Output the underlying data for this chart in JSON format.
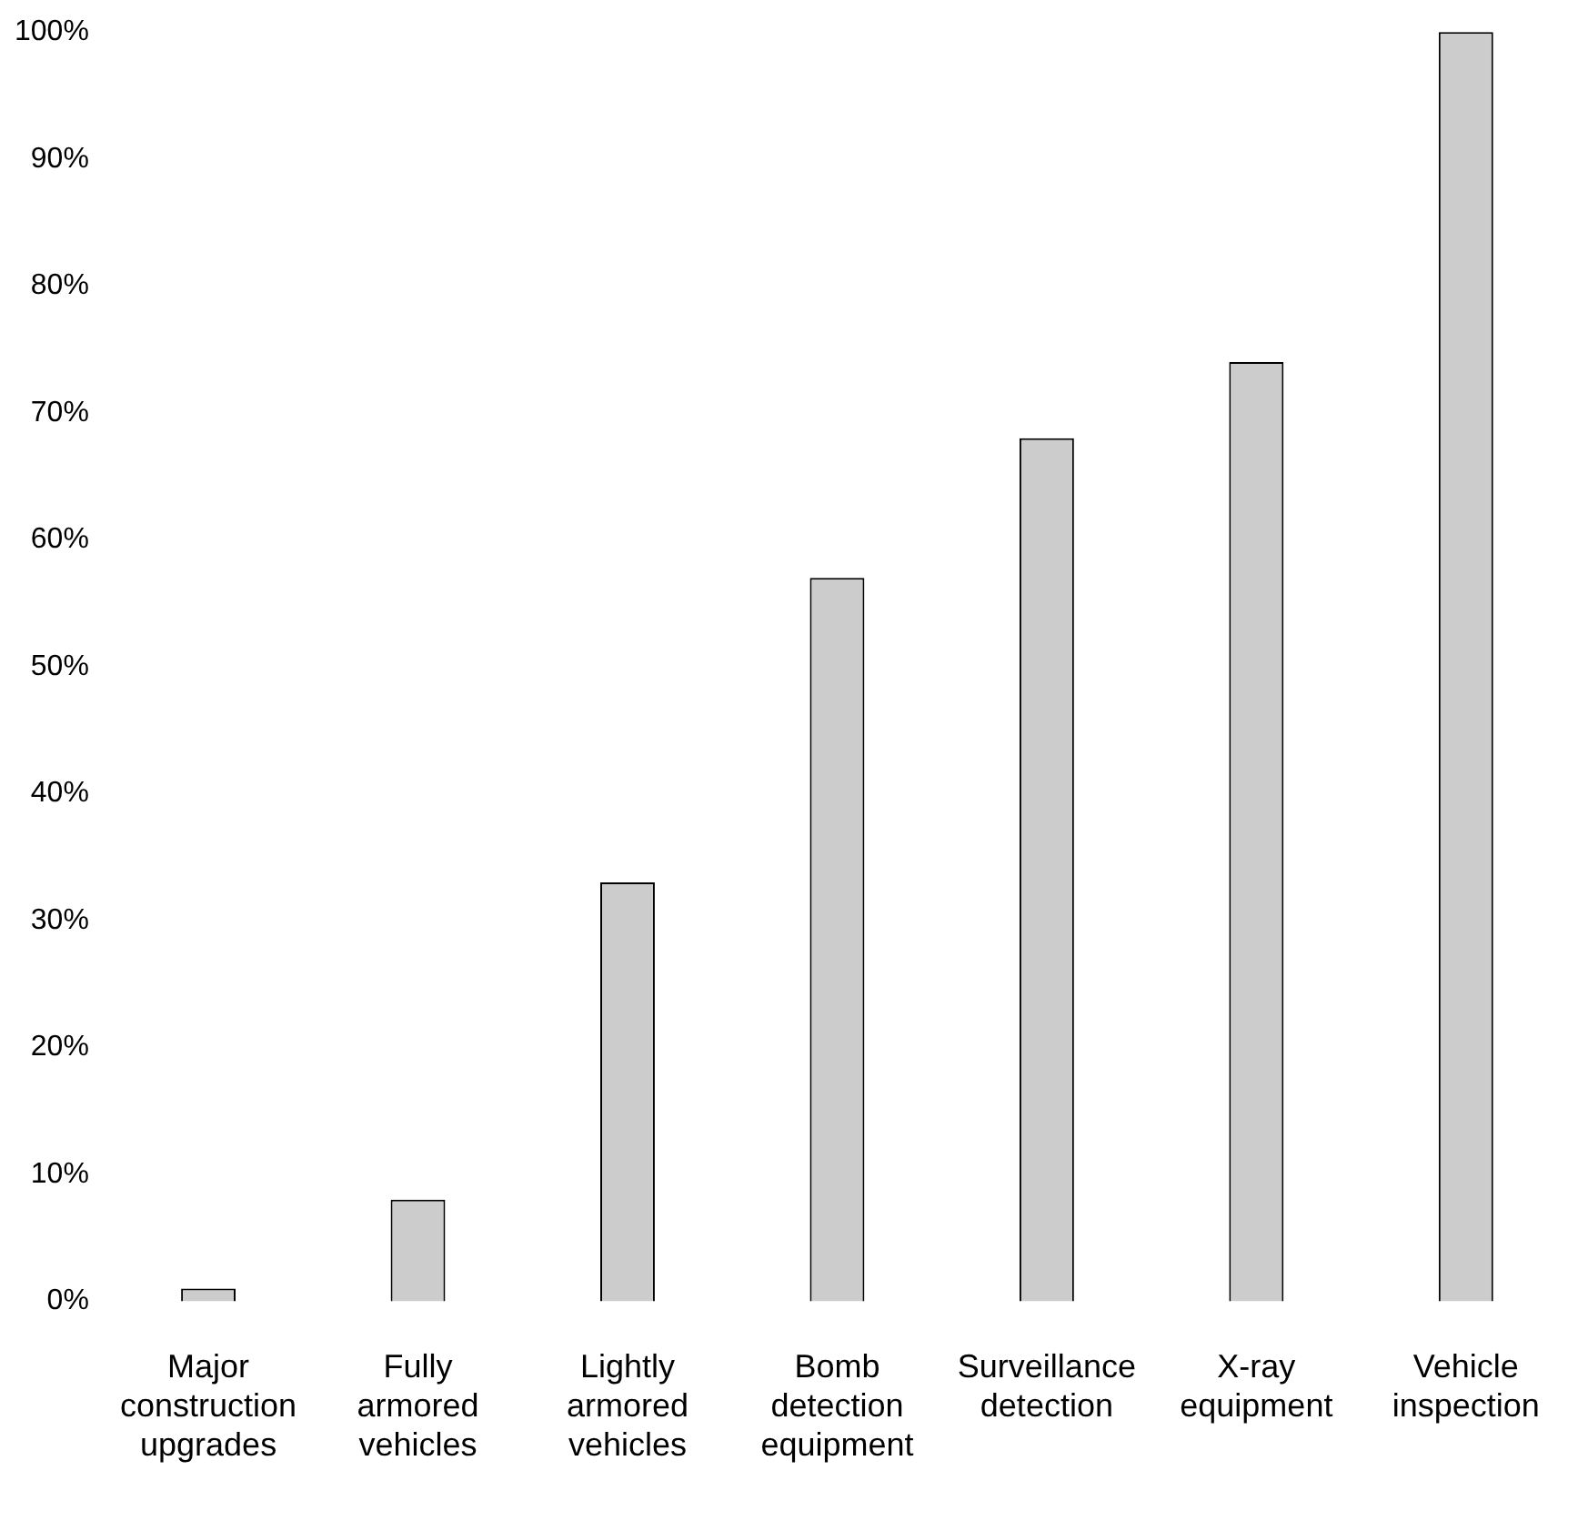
{
  "chart_data": {
    "type": "bar",
    "categories": [
      "Major construction upgrades",
      "Fully armored vehicles",
      "Lightly armored vehicles",
      "Bomb detection equipment",
      "Surveillance detection",
      "X-ray equipment",
      "Vehicle inspection"
    ],
    "values": [
      1,
      8,
      33,
      57,
      68,
      74,
      100
    ],
    "color": "#cccccc",
    "ylim": [
      0,
      100
    ],
    "yticks": [
      {
        "value": 0,
        "label": "0%"
      },
      {
        "value": 10,
        "label": "10%"
      },
      {
        "value": 20,
        "label": "20%"
      },
      {
        "value": 30,
        "label": "30%"
      },
      {
        "value": 40,
        "label": "40%"
      },
      {
        "value": 50,
        "label": "50%"
      },
      {
        "value": 60,
        "label": "60%"
      },
      {
        "value": 70,
        "label": "70%"
      },
      {
        "value": 80,
        "label": "80%"
      },
      {
        "value": 90,
        "label": "90%"
      },
      {
        "value": 100,
        "label": "100%"
      }
    ],
    "grid": false,
    "legend": false
  }
}
